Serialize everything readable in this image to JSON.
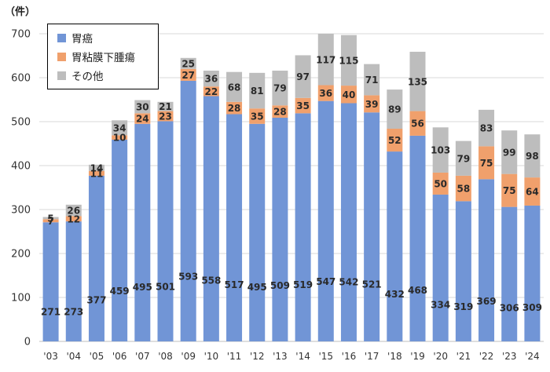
{
  "chart_data": {
    "type": "bar",
    "stacked": true,
    "unit_label": "（件）",
    "categories": [
      "'03",
      "'04",
      "'05",
      "'06",
      "'07",
      "'08",
      "'09",
      "'10",
      "'11",
      "'12",
      "'13",
      "'14",
      "'15",
      "'16",
      "'17",
      "'18",
      "'19",
      "'20",
      "'21",
      "'22",
      "'23",
      "'24"
    ],
    "series": [
      {
        "name": "胃癌",
        "color": "#7195d6",
        "values": [
          271,
          273,
          377,
          459,
          495,
          501,
          593,
          558,
          517,
          495,
          509,
          519,
          547,
          542,
          521,
          432,
          468,
          334,
          319,
          369,
          306,
          309
        ]
      },
      {
        "name": "胃粘膜下腫瘍",
        "color": "#f0a06c",
        "values": [
          7,
          12,
          11,
          10,
          24,
          23,
          27,
          22,
          28,
          35,
          28,
          35,
          36,
          40,
          39,
          52,
          56,
          50,
          58,
          75,
          75,
          64
        ]
      },
      {
        "name": "その他",
        "color": "#bdbdbd",
        "values": [
          5,
          26,
          14,
          34,
          30,
          21,
          25,
          36,
          68,
          81,
          79,
          97,
          117,
          115,
          71,
          89,
          135,
          103,
          79,
          83,
          99,
          98
        ]
      }
    ],
    "y_ticks": [
      0,
      100,
      200,
      300,
      400,
      500,
      600,
      700
    ],
    "ylim": [
      0,
      700
    ],
    "grid": true,
    "legend_position": "top-left"
  }
}
